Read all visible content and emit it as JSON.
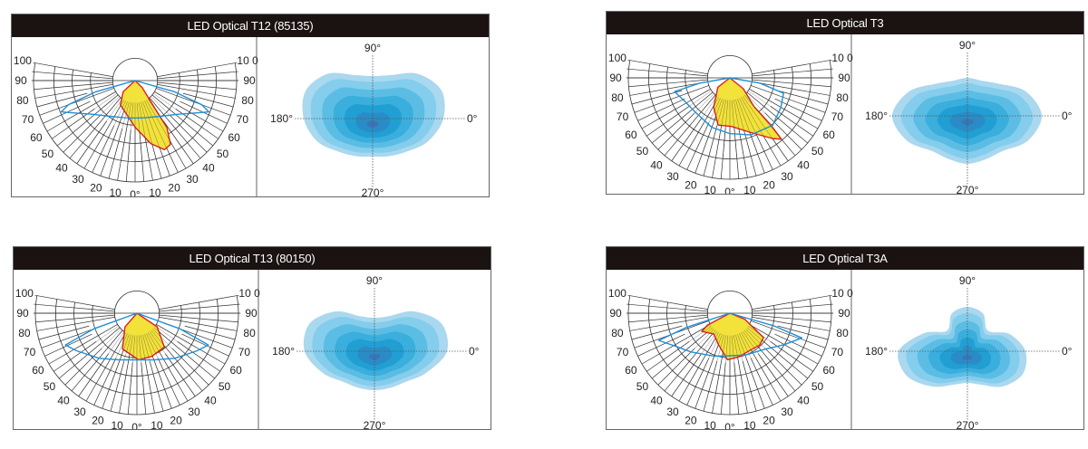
{
  "colors": {
    "header_bg": "#1b1312",
    "transverse": "#1f8fd6",
    "longitudinal_fill": "#f2e23a",
    "longitudinal_stroke": "#e02020",
    "iso_levels": [
      "#a9d8ef",
      "#84cdec",
      "#5cbde4",
      "#3aaedd",
      "#219fd3",
      "#2a8cc7",
      "#3a76b6"
    ]
  },
  "polar_labels": {
    "left": [
      "100",
      "90",
      "80",
      "70",
      "60",
      "50",
      "40",
      "30",
      "20",
      "10"
    ],
    "right": [
      "10 0",
      "90",
      "80",
      "70",
      "60",
      "50",
      "40",
      "30",
      "20",
      "10"
    ],
    "bottom": "0°"
  },
  "iso_labels": {
    "top": "90°",
    "bottom": "270°",
    "left": "180°",
    "right": "0°"
  },
  "panels": [
    {
      "title": "LED Optical T12 (85135)",
      "transverse": [
        [
          0,
          0
        ],
        [
          -74,
          0.4
        ],
        [
          -70,
          0.7
        ],
        [
          -67,
          0.79
        ],
        [
          -63,
          0.7
        ],
        [
          -52,
          0.54
        ],
        [
          -35,
          0.43
        ],
        [
          -15,
          0.38
        ],
        [
          0,
          0.37
        ],
        [
          15,
          0.38
        ],
        [
          35,
          0.43
        ],
        [
          52,
          0.54
        ],
        [
          63,
          0.7
        ],
        [
          67,
          0.79
        ],
        [
          70,
          0.7
        ],
        [
          74,
          0.4
        ],
        [
          0,
          0
        ]
      ],
      "longitudinal": [
        [
          0,
          0
        ],
        [
          -47,
          0.16
        ],
        [
          -31,
          0.28
        ],
        [
          0,
          0.46
        ],
        [
          14,
          0.64
        ],
        [
          23,
          0.74
        ],
        [
          29,
          0.72
        ],
        [
          34,
          0.56
        ],
        [
          36,
          0.3
        ],
        [
          45,
          0.1
        ],
        [
          0,
          0
        ]
      ]
    },
    {
      "title": "LED Optical T3",
      "transverse": [
        [
          0,
          0
        ],
        [
          -80,
          0.3
        ],
        [
          -76,
          0.56
        ],
        [
          -62,
          0.5
        ],
        [
          -45,
          0.48
        ],
        [
          -20,
          0.52
        ],
        [
          0,
          0.55
        ],
        [
          20,
          0.6
        ],
        [
          42,
          0.63
        ],
        [
          60,
          0.58
        ],
        [
          74,
          0.55
        ],
        [
          80,
          0.3
        ],
        [
          0,
          0
        ]
      ],
      "longitudinal": [
        [
          0,
          0
        ],
        [
          -52,
          0.15
        ],
        [
          -29,
          0.33
        ],
        [
          -14,
          0.48
        ],
        [
          2,
          0.48
        ],
        [
          20,
          0.57
        ],
        [
          35,
          0.73
        ],
        [
          40,
          0.79
        ],
        [
          41,
          0.61
        ],
        [
          40,
          0.37
        ],
        [
          51,
          0.17
        ],
        [
          0,
          0
        ]
      ]
    },
    {
      "title": "LED Optical T13 (80150)",
      "transverse": [
        [
          0,
          0
        ],
        [
          -70,
          0.45
        ],
        [
          -66,
          0.77
        ],
        [
          -58,
          0.7
        ],
        [
          -40,
          0.58
        ],
        [
          -20,
          0.49
        ],
        [
          0,
          0.46
        ],
        [
          20,
          0.49
        ],
        [
          40,
          0.58
        ],
        [
          58,
          0.7
        ],
        [
          66,
          0.77
        ],
        [
          70,
          0.45
        ],
        [
          0,
          0
        ]
      ],
      "longitudinal": [
        [
          0,
          0
        ],
        [
          -41,
          0.18
        ],
        [
          -22,
          0.38
        ],
        [
          2,
          0.46
        ],
        [
          19,
          0.45
        ],
        [
          39,
          0.43
        ],
        [
          56,
          0.24
        ],
        [
          0,
          0
        ]
      ]
    },
    {
      "title": "LED Optical T3A",
      "transverse": [
        [
          0,
          0
        ],
        [
          -72,
          0.45
        ],
        [
          -69,
          0.75
        ],
        [
          -58,
          0.62
        ],
        [
          -45,
          0.54
        ],
        [
          -20,
          0.45
        ],
        [
          0,
          0.42
        ],
        [
          20,
          0.44
        ],
        [
          43,
          0.49
        ],
        [
          60,
          0.62
        ],
        [
          71,
          0.75
        ],
        [
          74,
          0.45
        ],
        [
          0,
          0
        ]
      ],
      "longitudinal": [
        [
          0,
          0
        ],
        [
          -62,
          0.25
        ],
        [
          -57,
          0.33
        ],
        [
          -38,
          0.26
        ],
        [
          -20,
          0.33
        ],
        [
          -3,
          0.46
        ],
        [
          11,
          0.44
        ],
        [
          43,
          0.43
        ],
        [
          54,
          0.41
        ],
        [
          68,
          0.16
        ],
        [
          0,
          0
        ]
      ]
    }
  ]
}
